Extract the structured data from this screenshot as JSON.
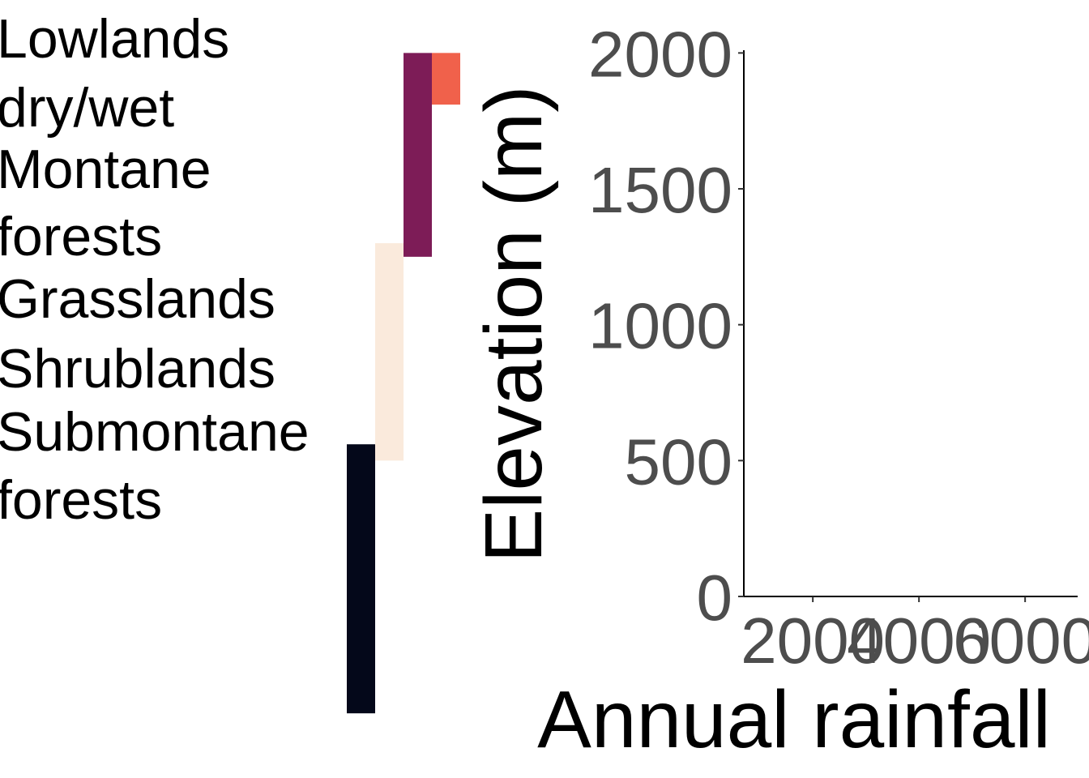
{
  "chart_data": {
    "type": "bar",
    "subtype": "elevation-range-strips",
    "series": [
      {
        "name": "Lowlands dry/wet",
        "elevation_range": [
          1810,
          2000
        ],
        "color": "#f0614b"
      },
      {
        "name": "Montane forests",
        "elevation_range": [
          1250,
          2000
        ],
        "color": "#7d1c57"
      },
      {
        "name": "Grasslands Shrublands",
        "elevation_range": [
          500,
          1300
        ],
        "color": "#faeadc"
      },
      {
        "name": "Submontane forests",
        "elevation_range": [
          -430,
          560
        ],
        "color": "#04081a"
      }
    ],
    "legend": {
      "position": "left",
      "labels": [
        {
          "line1": "Lowlands",
          "line2": "dry/wet"
        },
        {
          "line1": "Montane",
          "line2": "forests"
        },
        {
          "line1": "Grasslands",
          "line2": "Shrublands"
        },
        {
          "line1": "Submontane",
          "line2": "forests"
        }
      ]
    },
    "xlabel": "Annual rainfall",
    "ylabel": "Elevation (m)",
    "xticks": [
      "2000",
      "4000",
      "6000"
    ],
    "xtick_values": [
      2000,
      4000,
      6000
    ],
    "xlim": [
      700,
      6990
    ],
    "yticks": [
      "0",
      "500",
      "1000",
      "1500",
      "2000"
    ],
    "ytick_values": [
      0,
      500,
      1000,
      1500,
      2000
    ],
    "ylim": [
      0,
      2010
    ],
    "grid": false
  }
}
